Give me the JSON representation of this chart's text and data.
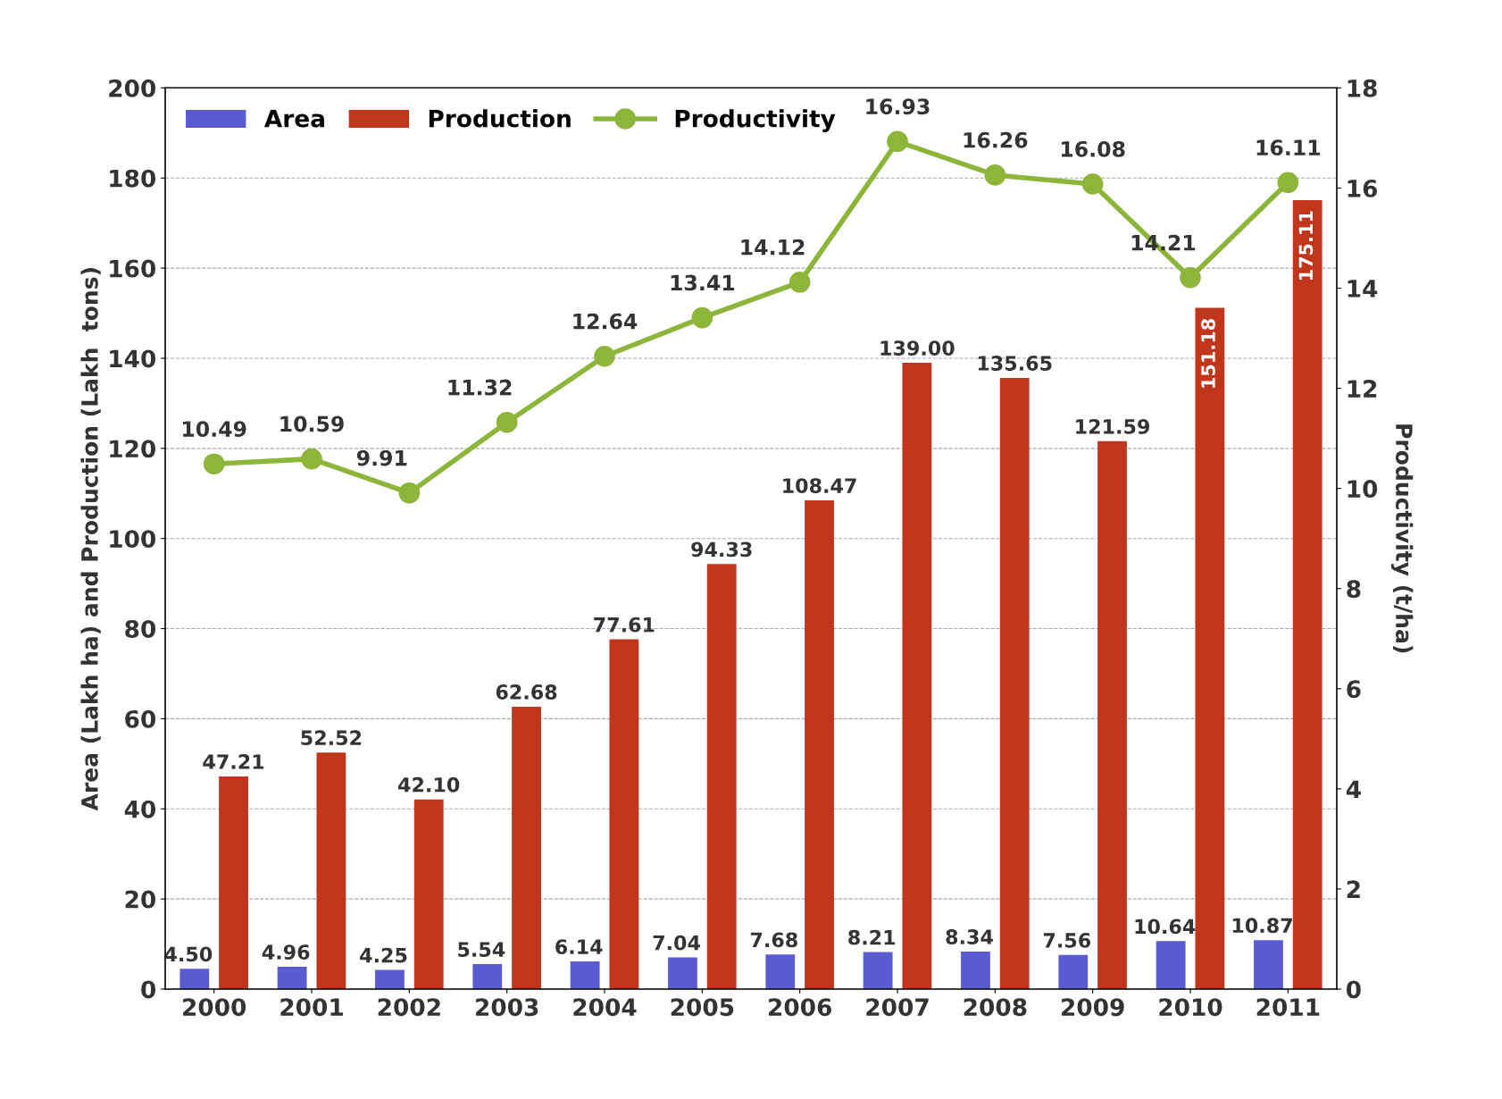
{
  "chart_data": {
    "type": "bar",
    "ylabel": "Area (Lakh ha) and Production (Lakh  tons)",
    "y2label": "Productivity (t/ha)",
    "categories": [
      "2000",
      "2001",
      "2002",
      "2003",
      "2004",
      "2005",
      "2006",
      "2007",
      "2008",
      "2009",
      "2010",
      "2011"
    ],
    "series": [
      {
        "name": "Area",
        "color": "#5a5bd0",
        "values": [
          4.5,
          4.96,
          4.25,
          5.54,
          6.14,
          7.04,
          7.68,
          8.21,
          8.34,
          7.56,
          10.64,
          10.87
        ],
        "value_labels": [
          "4.50",
          "4.96",
          "4.25",
          "5.54",
          "6.14",
          "7.04",
          "7.68",
          "8.21",
          "8.34",
          "7.56",
          "10.64",
          "10.87"
        ]
      },
      {
        "name": "Production",
        "color": "#c0361c",
        "values": [
          47.21,
          52.52,
          42.1,
          62.68,
          77.61,
          94.33,
          108.47,
          139.0,
          135.65,
          121.59,
          151.18,
          175.11
        ],
        "value_labels": [
          "47.21",
          "52.52",
          "42.10",
          "62.68",
          "77.61",
          "94.33",
          "108.47",
          "139.00",
          "135.65",
          "121.59",
          "151.18",
          "175.11"
        ]
      },
      {
        "name": "Productivity",
        "type": "line",
        "axis": "y2",
        "color": "#8db53a",
        "values": [
          10.49,
          10.59,
          9.91,
          11.32,
          12.64,
          13.41,
          14.12,
          16.93,
          16.26,
          16.08,
          14.21,
          16.11
        ],
        "value_labels": [
          "10.49",
          "10.59",
          "9.91",
          "11.32",
          "12.64",
          "13.41",
          "14.12",
          "16.93",
          "16.26",
          "16.08",
          "14.21",
          "16.11"
        ]
      }
    ],
    "ylim": [
      0,
      200
    ],
    "yticks": [
      0,
      20,
      40,
      60,
      80,
      100,
      120,
      140,
      160,
      180,
      200
    ],
    "y2lim": [
      0,
      18
    ],
    "y2ticks": [
      0,
      2,
      4,
      6,
      8,
      10,
      12,
      14,
      16,
      18
    ],
    "grid": "y",
    "legend": "top left",
    "marker": "circle",
    "line_style": "solid"
  }
}
